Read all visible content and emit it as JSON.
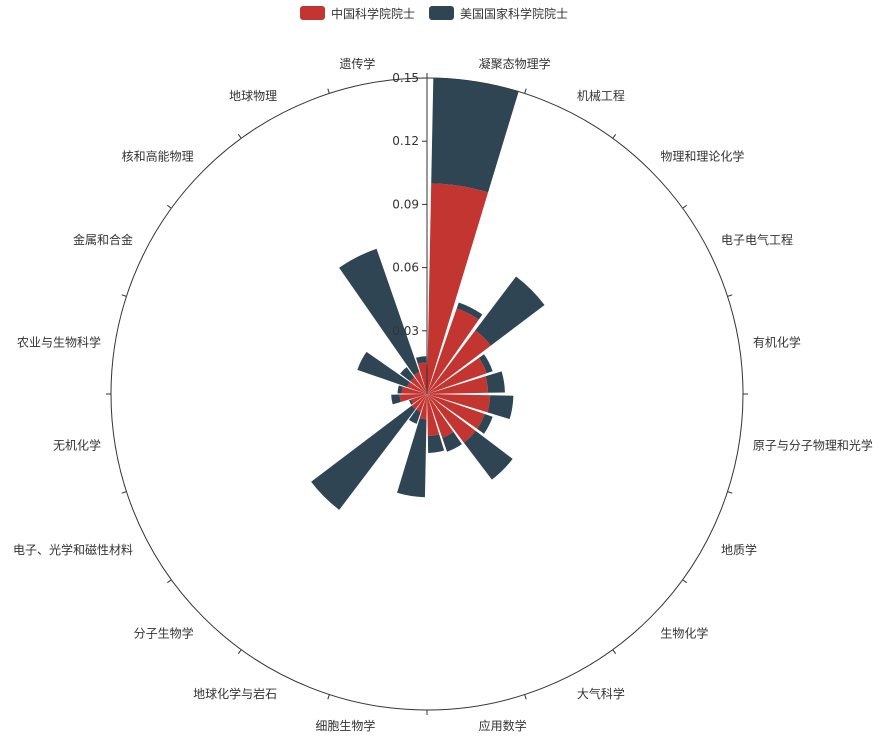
{
  "chart_data": {
    "type": "polar-bar-stacked",
    "categories": [
      "凝聚态物理学",
      "机械工程",
      "物理和理论化学",
      "电子电气工程",
      "有机化学",
      "原子与分子物理和光学",
      "地质学",
      "生物化学",
      "大气科学",
      "应用数学",
      "细胞生物学",
      "地球化学与岩石",
      "分子生物学",
      "电子、光学和磁性材料",
      "无机化学",
      "农业与生物科学",
      "金属和合金",
      "核和高能物理",
      "地球物理",
      "遗传学"
    ],
    "series": [
      {
        "name": "中国科学院院士",
        "color": "#c23531",
        "values": [
          0.1,
          0.043,
          0.038,
          0.03,
          0.029,
          0.03,
          0.029,
          0.029,
          0.022,
          0.02,
          0.012,
          0.009,
          0.009,
          0.008,
          0.013,
          0.012,
          0.01,
          0.01,
          0.011,
          0.015
        ]
      },
      {
        "name": "美国国家科学院院士",
        "color": "#2f4554",
        "values": [
          0.05,
          0.003,
          0.032,
          0.003,
          0.008,
          0.011,
          0.004,
          0.022,
          0.007,
          0.008,
          0.037,
          0.006,
          0.06,
          0.001,
          0.004,
          0.002,
          0.025,
          0.006,
          0.062,
          0.003
        ]
      }
    ],
    "radius_axis": {
      "min": 0,
      "max": 0.15,
      "ticks": [
        0,
        0.03,
        0.06,
        0.09,
        0.12,
        0.15
      ],
      "tick_labels": [
        "0",
        "0.03",
        "0.06",
        "0.09",
        "0.12",
        "0.15"
      ]
    },
    "legend_position": "top-center"
  }
}
